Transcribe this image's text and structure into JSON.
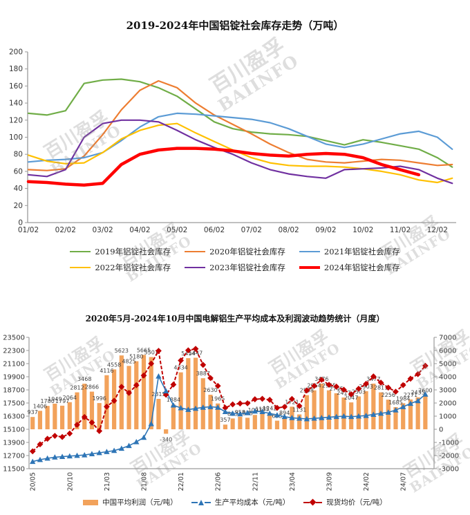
{
  "watermark": {
    "line1": "百川盈孚",
    "line2": "BAIINFO"
  },
  "chart_data": [
    {
      "type": "line",
      "title": "2019-2024年中国铝锭社会库存走势（万吨）",
      "ylabel": "",
      "xlabel": "",
      "ylim": [
        0,
        200
      ],
      "ytick_step": 20,
      "y_ticks": [
        0,
        20,
        40,
        60,
        80,
        100,
        120,
        140,
        160,
        180,
        200
      ],
      "x_tick_labels": [
        "01/02",
        "02/02",
        "03/02",
        "04/02",
        "05/02",
        "06/02",
        "07/02",
        "08/02",
        "09/02",
        "10/02",
        "11/02",
        "12/02"
      ],
      "x_months": [
        0,
        0.5,
        1,
        1.5,
        2,
        2.5,
        3,
        3.5,
        4,
        4.5,
        5,
        5.5,
        6,
        6.5,
        7,
        7.5,
        8,
        8.5,
        9,
        9.5,
        10,
        10.5,
        11,
        11.4
      ],
      "grid": false,
      "legend_position": "bottom",
      "series": [
        {
          "name": "2019年铝锭社会库存",
          "color": "#70AD47",
          "width": 2.2,
          "values": [
            128,
            126,
            131,
            163,
            167,
            168,
            165,
            158,
            148,
            133,
            118,
            110,
            106,
            104,
            103,
            101,
            96,
            91,
            97,
            94,
            90,
            86,
            76,
            65
          ]
        },
        {
          "name": "2020年铝锭社会库存",
          "color": "#ED7D31",
          "width": 2.2,
          "values": [
            62,
            61,
            63,
            78,
            103,
            132,
            155,
            166,
            158,
            140,
            126,
            115,
            104,
            92,
            82,
            74,
            71,
            70,
            72,
            74,
            73,
            70,
            67,
            68
          ]
        },
        {
          "name": "2021年铝锭社会库存",
          "color": "#5B9BD5",
          "width": 2.2,
          "values": [
            71,
            73,
            74,
            76,
            82,
            96,
            112,
            124,
            128,
            127,
            125,
            123,
            121,
            117,
            110,
            101,
            92,
            88,
            92,
            98,
            104,
            107,
            100,
            86
          ]
        },
        {
          "name": "2022年铝锭社会库存",
          "color": "#FFC000",
          "width": 2.2,
          "values": [
            79,
            72,
            69,
            70,
            82,
            98,
            108,
            114,
            116,
            105,
            95,
            85,
            76,
            70,
            67,
            66,
            66,
            65,
            63,
            60,
            56,
            50,
            47,
            52
          ]
        },
        {
          "name": "2023年铝锭社会库存",
          "color": "#7030A0",
          "width": 2.2,
          "values": [
            56,
            54,
            62,
            100,
            116,
            120,
            120,
            118,
            108,
            97,
            88,
            80,
            70,
            62,
            57,
            54,
            52,
            62,
            63,
            64,
            66,
            62,
            52,
            46
          ]
        },
        {
          "name": "2024年铝锭社会库存",
          "color": "#FF0000",
          "width": 4.5,
          "values": [
            48,
            47,
            45,
            44,
            46,
            68,
            80,
            85,
            87,
            87,
            86,
            84,
            81,
            79,
            78,
            80,
            81,
            80,
            76,
            68,
            62,
            56
          ]
        }
      ]
    },
    {
      "type": "combo-bar-line",
      "title": "2020年5月-2024年10月中国电解铝生产平均成本及利润波动趋势统计（月度）",
      "left_ylim": [
        11500,
        23500
      ],
      "left_ytick_step": 1200,
      "left_y_ticks": [
        11500,
        12700,
        13900,
        15100,
        16300,
        17500,
        18700,
        19900,
        21100,
        22300,
        23500
      ],
      "right_ylim": [
        -3000,
        7000
      ],
      "right_ytick_step": 1000,
      "right_y_ticks": [
        -3000,
        -2000,
        -1000,
        0,
        1000,
        2000,
        3000,
        4000,
        5000,
        6000,
        7000
      ],
      "x_tick_every": 5,
      "x_tick_labels": [
        "20/05",
        "20/10",
        "21/03",
        "21/08",
        "22/01",
        "22/06",
        "22/11",
        "23/04",
        "23/09",
        "24/02",
        "24/07"
      ],
      "months": [
        "20/05",
        "20/06",
        "20/07",
        "20/08",
        "20/09",
        "20/10",
        "20/11",
        "20/12",
        "21/01",
        "21/02",
        "21/03",
        "21/04",
        "21/05",
        "21/06",
        "21/07",
        "21/08",
        "21/09",
        "21/10",
        "21/11",
        "21/12",
        "22/01",
        "22/02",
        "22/03",
        "22/04",
        "22/05",
        "22/06",
        "22/07",
        "22/08",
        "22/09",
        "22/10",
        "22/11",
        "22/12",
        "23/01",
        "23/02",
        "23/03",
        "23/04",
        "23/05",
        "23/06",
        "23/07",
        "23/08",
        "23/09",
        "23/10",
        "23/11",
        "23/12",
        "24/01",
        "24/02",
        "24/03",
        "24/04",
        "24/05",
        "24/06",
        "24/07",
        "24/08",
        "24/09",
        "24/10"
      ],
      "bars": {
        "name": "中国平均利润（元/吨）",
        "axis": "right",
        "color": "#F2A25B",
        "values": [
          937,
          1406,
          1780,
          1949,
          1797,
          2064,
          2812,
          3468,
          2866,
          1996,
          4116,
          4558,
          5623,
          4825,
          5180,
          5665,
          5501,
          2315,
          -340,
          1884,
          4334,
          5414,
          5447,
          3887,
          2630,
          1965,
          357,
          823,
          958,
          878,
          1093,
          1185,
          1242,
          655,
          894,
          1721,
          1131,
          2598,
          2964,
          3476,
          2965,
          2745,
          2417,
          2047,
          2503,
          2903,
          3477,
          2811,
          2256,
          1685,
          1984,
          2271,
          2435,
          2600
        ]
      },
      "cost_line": {
        "name": "生产平均成本（元/吨）",
        "axis": "left",
        "color": "#2E75B6",
        "marker": "triangle",
        "values": [
          12150,
          12320,
          12450,
          12550,
          12600,
          12650,
          12700,
          12750,
          12850,
          12950,
          13050,
          13150,
          13350,
          13600,
          13950,
          14350,
          15600,
          19950,
          18600,
          17300,
          17050,
          16900,
          17000,
          17100,
          17150,
          17100,
          16700,
          16550,
          16500,
          16600,
          16750,
          16700,
          16550,
          16400,
          16250,
          16150,
          16100,
          16050,
          16100,
          16150,
          16200,
          16250,
          16300,
          16250,
          16300,
          16350,
          16450,
          16550,
          16650,
          16850,
          17150,
          17450,
          17700,
          18300
        ]
      },
      "price_line": {
        "name": "现货均价（元/吨）",
        "axis": "left",
        "color": "#C00000",
        "marker": "diamond",
        "dashed": true,
        "values": [
          13087,
          13726,
          14230,
          14499,
          14397,
          14714,
          15512,
          16218,
          15716,
          14946,
          17166,
          17708,
          18973,
          18425,
          19130,
          20015,
          21101,
          22265,
          18260,
          19184,
          21384,
          22314,
          22447,
          20987,
          19780,
          19065,
          17057,
          17373,
          17458,
          17478,
          17843,
          17885,
          17792,
          17055,
          17144,
          17871,
          17231,
          18648,
          19064,
          19626,
          19165,
          18995,
          18717,
          18297,
          18803,
          19253,
          19927,
          19361,
          18906,
          18535,
          19134,
          19721,
          20135,
          20900
        ]
      }
    }
  ]
}
